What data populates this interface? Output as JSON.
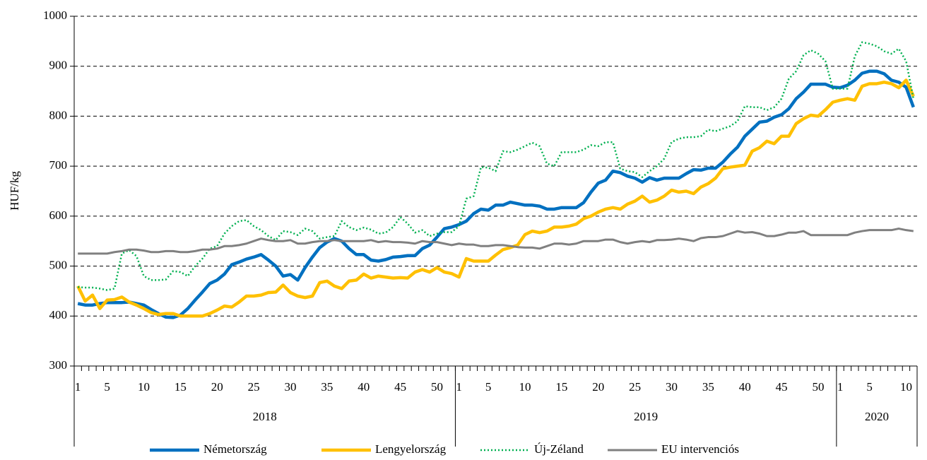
{
  "chart_data": {
    "type": "line",
    "y_label": "HUF/kg",
    "ylim": [
      300,
      1000
    ],
    "yticks": [
      300,
      400,
      500,
      600,
      700,
      800,
      900,
      1000
    ],
    "grid": true,
    "legend": "bottom",
    "groups": [
      "2018",
      "2019",
      "2020"
    ],
    "categories": [
      "1",
      null,
      null,
      null,
      "5",
      null,
      null,
      null,
      null,
      "10",
      null,
      null,
      null,
      null,
      "15",
      null,
      null,
      null,
      null,
      "20",
      null,
      null,
      null,
      null,
      "25",
      null,
      null,
      null,
      null,
      "30",
      null,
      null,
      null,
      null,
      "35",
      null,
      null,
      null,
      null,
      "40",
      null,
      null,
      null,
      null,
      "45",
      null,
      null,
      null,
      null,
      "50",
      null,
      null,
      "1",
      null,
      null,
      null,
      "5",
      null,
      null,
      null,
      null,
      "10",
      null,
      null,
      null,
      null,
      "15",
      null,
      null,
      null,
      null,
      "20",
      null,
      null,
      null,
      null,
      "25",
      null,
      null,
      null,
      null,
      "30",
      null,
      null,
      null,
      null,
      "35",
      null,
      null,
      null,
      null,
      "40",
      null,
      null,
      null,
      null,
      "45",
      null,
      null,
      null,
      null,
      "50",
      null,
      null,
      "1",
      null,
      null,
      null,
      "5",
      null,
      null,
      null,
      null,
      "10",
      null
    ],
    "series": [
      {
        "name": "Németország",
        "color": "#0070c0",
        "style": "solid",
        "values": [
          425,
          422,
          422,
          425,
          427,
          427,
          427,
          428,
          425,
          422,
          413,
          405,
          398,
          397,
          402,
          415,
          432,
          448,
          465,
          472,
          484,
          503,
          508,
          514,
          518,
          523,
          512,
          500,
          480,
          483,
          472,
          497,
          518,
          537,
          548,
          555,
          550,
          535,
          523,
          523,
          512,
          510,
          513,
          518,
          519,
          521,
          521,
          535,
          542,
          558,
          575,
          578,
          583,
          590,
          605,
          614,
          612,
          622,
          622,
          628,
          625,
          622,
          622,
          620,
          614,
          614,
          617,
          617,
          617,
          627,
          648,
          666,
          672,
          690,
          687,
          680,
          676,
          668,
          677,
          672,
          676,
          676,
          676,
          685,
          693,
          692,
          696,
          696,
          708,
          724,
          738,
          760,
          774,
          788,
          790,
          798,
          803,
          815,
          835,
          848,
          864,
          864,
          864,
          858,
          857,
          862,
          872,
          886,
          890,
          890,
          885,
          872,
          868,
          858,
          818
        ]
      },
      {
        "name": "Lengyelország",
        "color": "#ffc000",
        "style": "solid",
        "values": [
          460,
          430,
          442,
          415,
          432,
          433,
          438,
          428,
          422,
          415,
          407,
          403,
          405,
          405,
          400,
          400,
          400,
          400,
          405,
          412,
          420,
          418,
          428,
          440,
          440,
          442,
          447,
          448,
          462,
          447,
          440,
          437,
          440,
          467,
          470,
          460,
          455,
          470,
          472,
          484,
          476,
          480,
          478,
          476,
          477,
          476,
          488,
          493,
          488,
          497,
          488,
          485,
          478,
          515,
          510,
          510,
          510,
          522,
          533,
          537,
          542,
          563,
          570,
          567,
          570,
          578,
          578,
          580,
          584,
          595,
          600,
          608,
          614,
          617,
          614,
          624,
          630,
          640,
          628,
          632,
          640,
          652,
          648,
          650,
          645,
          658,
          665,
          676,
          695,
          698,
          700,
          702,
          730,
          737,
          750,
          745,
          760,
          760,
          785,
          795,
          802,
          800,
          813,
          828,
          832,
          835,
          832,
          860,
          865,
          865,
          868,
          865,
          857,
          872,
          840
        ]
      },
      {
        "name": "Új-Zéland",
        "color": "#00b050",
        "style": "dotted",
        "values": [
          458,
          457,
          457,
          455,
          452,
          455,
          525,
          532,
          520,
          480,
          472,
          472,
          473,
          490,
          488,
          480,
          500,
          515,
          535,
          540,
          565,
          580,
          590,
          592,
          580,
          572,
          560,
          552,
          570,
          568,
          562,
          575,
          570,
          555,
          558,
          560,
          590,
          578,
          572,
          577,
          573,
          565,
          567,
          578,
          598,
          585,
          567,
          572,
          560,
          565,
          568,
          568,
          580,
          635,
          640,
          698,
          697,
          690,
          730,
          728,
          733,
          740,
          747,
          740,
          705,
          700,
          728,
          728,
          728,
          733,
          742,
          740,
          748,
          748,
          695,
          690,
          688,
          678,
          690,
          700,
          715,
          748,
          755,
          758,
          758,
          760,
          773,
          770,
          775,
          780,
          790,
          820,
          818,
          818,
          812,
          818,
          835,
          875,
          890,
          922,
          932,
          925,
          910,
          855,
          855,
          855,
          920,
          948,
          945,
          940,
          930,
          925,
          935,
          910,
          835
        ]
      },
      {
        "name": "EU intervenciós",
        "color": "#808080",
        "style": "solid",
        "values": [
          525,
          525,
          525,
          525,
          525,
          528,
          530,
          533,
          533,
          531,
          528,
          528,
          530,
          530,
          528,
          528,
          530,
          533,
          533,
          535,
          540,
          540,
          542,
          545,
          550,
          555,
          552,
          550,
          550,
          552,
          545,
          545,
          548,
          550,
          550,
          552,
          550,
          550,
          550,
          550,
          552,
          548,
          550,
          548,
          548,
          547,
          545,
          550,
          548,
          548,
          545,
          542,
          545,
          543,
          543,
          540,
          540,
          542,
          542,
          540,
          538,
          537,
          537,
          535,
          540,
          545,
          545,
          543,
          545,
          550,
          550,
          550,
          553,
          553,
          548,
          545,
          548,
          550,
          548,
          552,
          552,
          553,
          555,
          553,
          550,
          556,
          558,
          558,
          560,
          565,
          570,
          567,
          568,
          565,
          560,
          560,
          563,
          567,
          567,
          570,
          562,
          562,
          562,
          562,
          562,
          562,
          567,
          570,
          572,
          572,
          572,
          572,
          575,
          572,
          570
        ]
      }
    ]
  }
}
